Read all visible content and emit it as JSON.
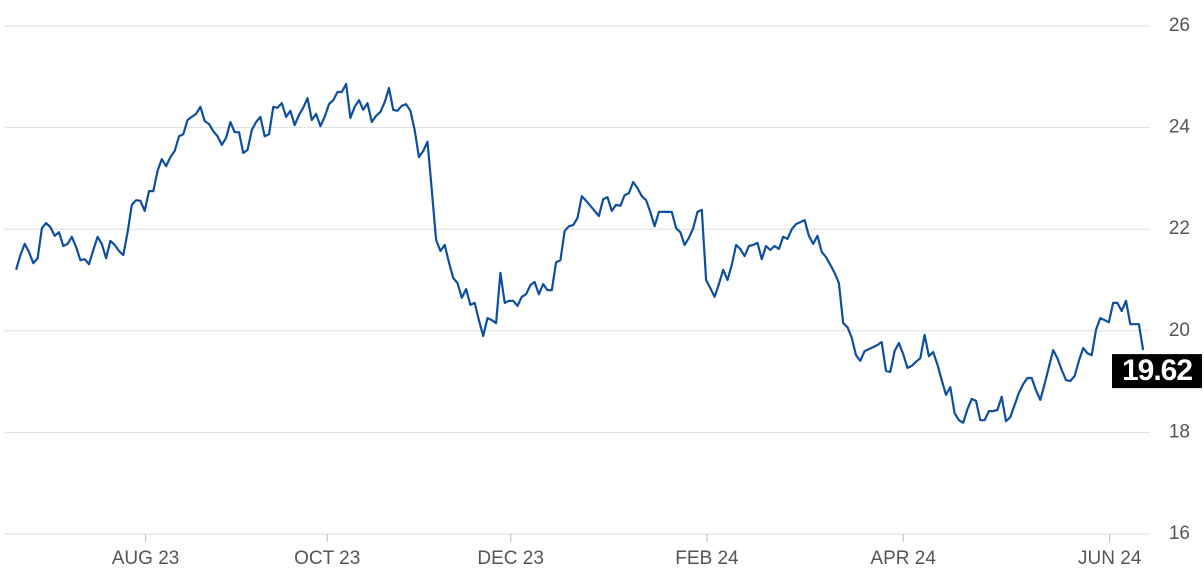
{
  "chart_data": {
    "type": "line",
    "color": "#0d4f9e",
    "grid": true,
    "y_axis_side": "right",
    "values": [
      21.2,
      21.49,
      21.71,
      21.55,
      21.33,
      21.43,
      22.02,
      22.12,
      22.04,
      21.87,
      21.94,
      21.67,
      21.71,
      21.85,
      21.65,
      21.39,
      21.41,
      21.31,
      21.59,
      21.85,
      21.71,
      21.43,
      21.77,
      21.69,
      21.57,
      21.49,
      21.94,
      22.48,
      22.57,
      22.56,
      22.36,
      22.75,
      22.75,
      23.15,
      23.38,
      23.24,
      23.42,
      23.54,
      23.83,
      23.87,
      24.15,
      24.21,
      24.27,
      24.41,
      24.13,
      24.07,
      23.93,
      23.83,
      23.66,
      23.8,
      24.11,
      23.91,
      23.91,
      23.5,
      23.56,
      23.95,
      24.11,
      24.21,
      23.83,
      23.87,
      24.41,
      24.39,
      24.48,
      24.21,
      24.33,
      24.05,
      24.25,
      24.39,
      24.58,
      24.15,
      24.27,
      24.03,
      24.21,
      24.46,
      24.54,
      24.7,
      24.7,
      24.86,
      24.19,
      24.41,
      24.54,
      24.35,
      24.48,
      24.11,
      24.23,
      24.31,
      24.5,
      24.78,
      24.35,
      24.33,
      24.43,
      24.46,
      24.33,
      23.95,
      23.42,
      23.54,
      23.72,
      22.77,
      21.79,
      21.57,
      21.69,
      21.35,
      21.04,
      20.94,
      20.65,
      20.82,
      20.51,
      20.55,
      20.21,
      19.9,
      20.25,
      20.21,
      20.15,
      21.14,
      20.55,
      20.59,
      20.59,
      20.49,
      20.67,
      20.72,
      20.9,
      20.96,
      20.72,
      20.92,
      20.8,
      20.8,
      21.35,
      21.39,
      21.96,
      22.06,
      22.08,
      22.22,
      22.65,
      22.56,
      22.46,
      22.36,
      22.26,
      22.59,
      22.63,
      22.36,
      22.48,
      22.46,
      22.67,
      22.71,
      22.93,
      22.81,
      22.65,
      22.57,
      22.34,
      22.06,
      22.34,
      22.34,
      22.34,
      22.34,
      22.02,
      21.94,
      21.69,
      21.83,
      22.02,
      22.34,
      22.38,
      21.0,
      20.84,
      20.67,
      20.92,
      21.2,
      21.0,
      21.3,
      21.69,
      21.61,
      21.47,
      21.67,
      21.69,
      21.73,
      21.41,
      21.67,
      21.59,
      21.67,
      21.61,
      21.85,
      21.81,
      22.0,
      22.1,
      22.14,
      22.18,
      21.87,
      21.71,
      21.87,
      21.55,
      21.45,
      21.3,
      21.14,
      20.94,
      20.15,
      20.07,
      19.86,
      19.52,
      19.41,
      19.6,
      19.64,
      19.68,
      19.72,
      19.78,
      19.21,
      19.19,
      19.6,
      19.76,
      19.54,
      19.27,
      19.31,
      19.39,
      19.46,
      19.92,
      19.5,
      19.58,
      19.33,
      19.03,
      18.74,
      18.89,
      18.38,
      18.24,
      18.19,
      18.46,
      18.66,
      18.62,
      18.24,
      18.24,
      18.42,
      18.42,
      18.44,
      18.7,
      18.22,
      18.3,
      18.54,
      18.78,
      18.95,
      19.07,
      19.07,
      18.83,
      18.64,
      18.95,
      19.29,
      19.62,
      19.46,
      19.23,
      19.03,
      19.01,
      19.11,
      19.41,
      19.66,
      19.56,
      19.52,
      20.02,
      20.25,
      20.21,
      20.17,
      20.55,
      20.55,
      20.39,
      20.59,
      20.13,
      20.13,
      20.13,
      19.62
    ],
    "xlim": [
      -2.6,
      264.6
    ],
    "xticks": [
      {
        "value": 30.2,
        "label": "AUG 23"
      },
      {
        "value": 72.6,
        "label": "OCT 23"
      },
      {
        "value": 115.4,
        "label": "DEC 23"
      },
      {
        "value": 161.2,
        "label": "FEB 24"
      },
      {
        "value": 207,
        "label": "APR 24"
      },
      {
        "value": 255.2,
        "label": "JUN 24"
      }
    ],
    "ylim": [
      16,
      26
    ],
    "yticks": [
      16,
      18,
      20,
      22,
      24,
      26
    ]
  }
}
